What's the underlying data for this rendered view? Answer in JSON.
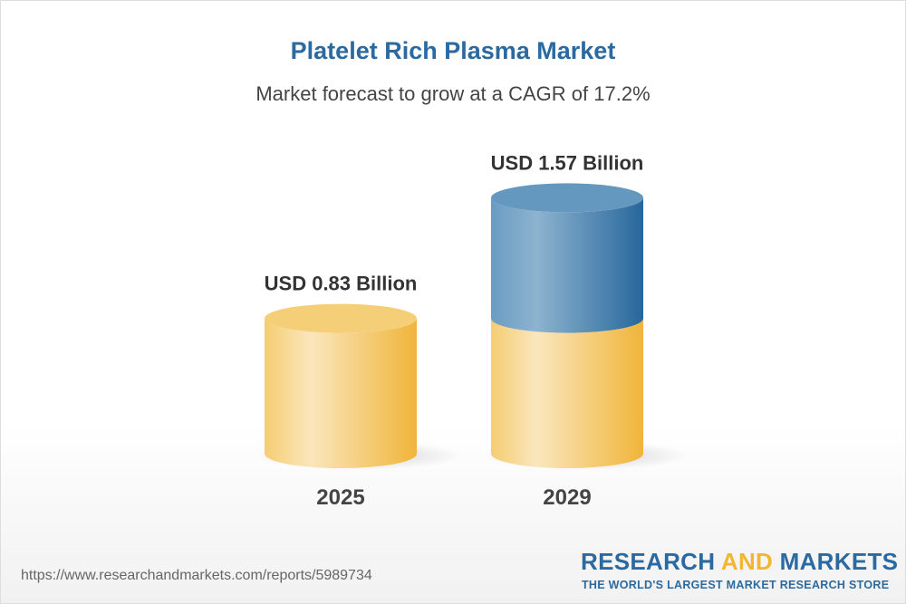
{
  "chart_data": {
    "type": "bar",
    "style": "3d-cylinder",
    "title": "Platelet Rich Plasma Market",
    "subtitle": "Market forecast to grow at a CAGR of 17.2%",
    "categories": [
      "2025",
      "2029"
    ],
    "values": [
      0.83,
      1.57
    ],
    "data_labels": [
      "USD 0.83 Billion",
      "USD 1.57 Billion"
    ],
    "unit": "USD Billion",
    "colors": {
      "base": "#f1b733",
      "growth": "#2a6aa0"
    }
  },
  "footer": {
    "url": "https://www.researchandmarkets.com/reports/5989734",
    "logo_part1": "RESEARCH ",
    "logo_part2": "AND",
    "logo_part3": " MARKETS",
    "tagline": "THE WORLD'S LARGEST MARKET RESEARCH STORE"
  }
}
